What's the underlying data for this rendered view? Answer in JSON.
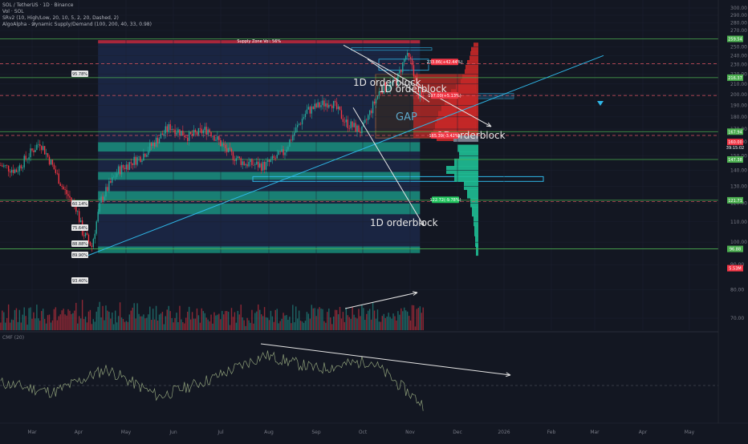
{
  "header": {
    "line1": "SOL / TetherUS · 1D · Binance",
    "line2": "Vol · SOL",
    "line3": "SRv2 (10, High/Low, 20, 10, 5, 2, 20, Dashed, 2)",
    "line4": "AlgoAlpha - 𝓓ynamic Supply/Demand (100, 200, 40, 33, 0.98)"
  },
  "price_axis": {
    "ticks": [
      300,
      290,
      280,
      270,
      250,
      240,
      230,
      220,
      210,
      200,
      190,
      180,
      170,
      160,
      150,
      140,
      130,
      120,
      110,
      100,
      90,
      80,
      70
    ],
    "labels": [
      "300.00",
      "290.00",
      "280.00",
      "270.00",
      "250.00",
      "240.00",
      "230.00",
      "220.00",
      "210.00",
      "200.00",
      "190.00",
      "180.00",
      "170.00",
      "160.00",
      "150.00",
      "140.00",
      "130.00",
      "120.00",
      "110.00",
      "100.00",
      "90.00",
      "80.00",
      "70.00"
    ],
    "level_tags": [
      {
        "text": "259.54",
        "value": 259.54,
        "color": "#4caf50"
      },
      {
        "text": "216.37",
        "value": 216.37,
        "color": "#4caf50"
      },
      {
        "text": "167.94",
        "value": 167.94,
        "color": "#4caf50"
      },
      {
        "text": "160.00",
        "value": 160.0,
        "color": "#f23645"
      },
      {
        "text": "147.38",
        "value": 147.38,
        "color": "#4caf50"
      },
      {
        "text": "121.71",
        "value": 121.71,
        "color": "#4caf50"
      },
      {
        "text": "96.88",
        "value": 96.88,
        "color": "#4caf50"
      },
      {
        "text": "5.53M",
        "value": 88.5,
        "color": "#f23645"
      }
    ],
    "sub_tag": "39:15:02"
  },
  "cmf_panel": {
    "title": "CMF (20)",
    "ticks": [
      0.3,
      0.2,
      0.1,
      0.0,
      -0.1,
      -0.2
    ],
    "labels": [
      "0.30",
      "0.20",
      "0.10",
      "0.00",
      "−0.10",
      "−0.20"
    ],
    "last_tag": "−0.14"
  },
  "time_axis": {
    "labels": [
      "Mar",
      "Apr",
      "May",
      "Jun",
      "Jul",
      "Aug",
      "Sep",
      "Oct",
      "Nov",
      "Dec",
      "2026",
      "Feb",
      "Mar",
      "Apr",
      "May"
    ]
  },
  "annotations": {
    "orderblocks": [
      "1D orderblock",
      "1D orderblock",
      "1D orderblock",
      "1D orderblock"
    ],
    "gap": "GAP",
    "top_zone_label": "Supply Zone Vol: 56%",
    "price_tags": [
      "233.86(+42.44%)",
      "197.00(+5.13%)",
      "165.39(-3.42%)",
      "122.72(-9.78%)"
    ],
    "pct_labels": [
      "95.78%",
      "60.14%",
      "75.64%",
      "88.88%",
      "89.90%",
      "93.40%"
    ]
  },
  "colors": {
    "bg": "#131722",
    "bull": "#26a69a",
    "bear": "#f23645",
    "level": "#4caf50",
    "supply": "#f23645",
    "demand": "#1fbf95",
    "trend": "#2fb7e8",
    "white": "#e0e0e0",
    "zoneblue": "#1e2b4d"
  },
  "chart_data": [
    {
      "type": "candlestick",
      "title": "SOL / TetherUS · 1D · Binance",
      "ylim": [
        65,
        305
      ],
      "scale": "log",
      "x": [
        "Mar",
        "Apr",
        "May",
        "Jun",
        "Jul",
        "Aug",
        "Sep",
        "Oct",
        "Nov"
      ],
      "approx_close": [
        140,
        118,
        150,
        160,
        155,
        180,
        205,
        215,
        155
      ],
      "approx_high": [
        180,
        148,
        175,
        178,
        188,
        205,
        252,
        245,
        215
      ],
      "approx_low": [
        115,
        96,
        140,
        143,
        146,
        160,
        182,
        170,
        150
      ],
      "last_price": 160.0,
      "levels": [
        259.54,
        216.37,
        167.94,
        147.38,
        121.71,
        96.88
      ],
      "dashed_levels": [
        231,
        199,
        165,
        121
      ]
    },
    {
      "type": "line",
      "title": "CMF (20)",
      "ylim": [
        -0.25,
        0.35
      ],
      "x": [
        "Mar",
        "Apr",
        "May",
        "Jun",
        "Jul",
        "Aug",
        "Sep",
        "Oct",
        "Nov"
      ],
      "values": [
        0.02,
        -0.05,
        0.12,
        -0.08,
        0.05,
        0.22,
        0.12,
        0.18,
        -0.14
      ]
    }
  ]
}
